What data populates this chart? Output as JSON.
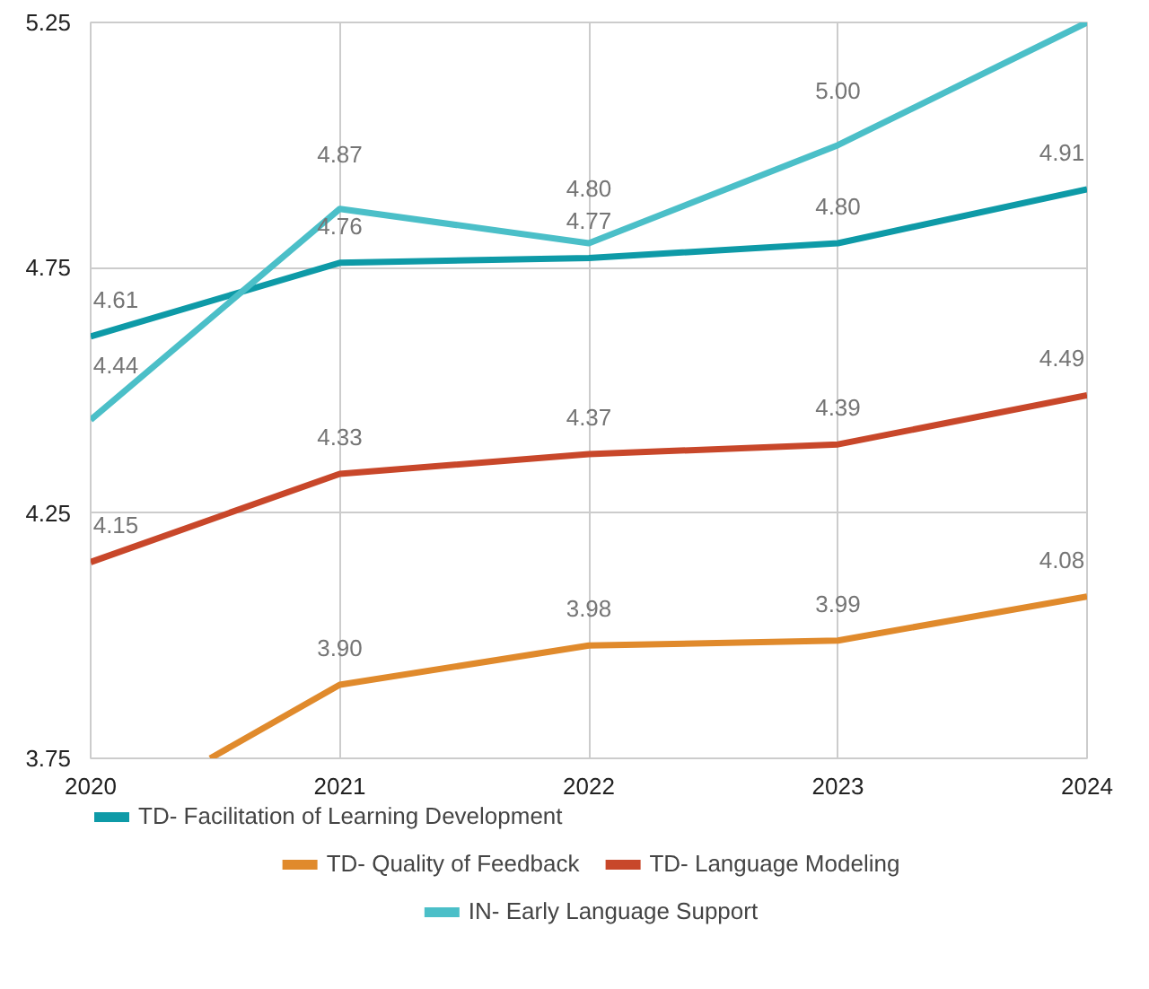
{
  "chart_data": {
    "type": "line",
    "x": [
      2020,
      2021,
      2022,
      2023,
      2024
    ],
    "xlim": [
      2020,
      2024
    ],
    "xticks": [
      2020,
      2021,
      2022,
      2023,
      2024
    ],
    "ylim": [
      3.75,
      5.25
    ],
    "yticks": [
      3.75,
      4.25,
      4.75,
      5.25
    ],
    "grid": true,
    "legend": "bottom",
    "marker": "none",
    "line_style": "solid",
    "series": [
      {
        "name": "TD- Facilitation of Learning Development",
        "color": "#0e9aa7",
        "values": [
          4.61,
          4.76,
          4.77,
          4.8,
          4.91
        ],
        "value_labels": [
          "4.61",
          "4.76",
          "4.77",
          "4.80",
          "4.91"
        ]
      },
      {
        "name": "TD- Quality of Feedback",
        "color": "#e08a2c",
        "x": [
          2020.48,
          2021,
          2022,
          2023,
          2024
        ],
        "values": [
          3.75,
          3.9,
          3.98,
          3.99,
          4.08
        ],
        "value_labels": [
          null,
          "3.90",
          "3.98",
          "3.99",
          "4.08"
        ]
      },
      {
        "name": "TD- Language Modeling",
        "color": "#c8472a",
        "values": [
          4.15,
          4.33,
          4.37,
          4.39,
          4.49
        ],
        "value_labels": [
          "4.15",
          "4.33",
          "4.37",
          "4.39",
          "4.49"
        ]
      },
      {
        "name": "IN- Early Language Support",
        "color": "#4bbfc8",
        "values": [
          4.44,
          4.87,
          4.8,
          5.0,
          5.25
        ],
        "value_labels": [
          "4.44",
          "4.87",
          "4.80",
          "5.00",
          null
        ]
      }
    ]
  }
}
